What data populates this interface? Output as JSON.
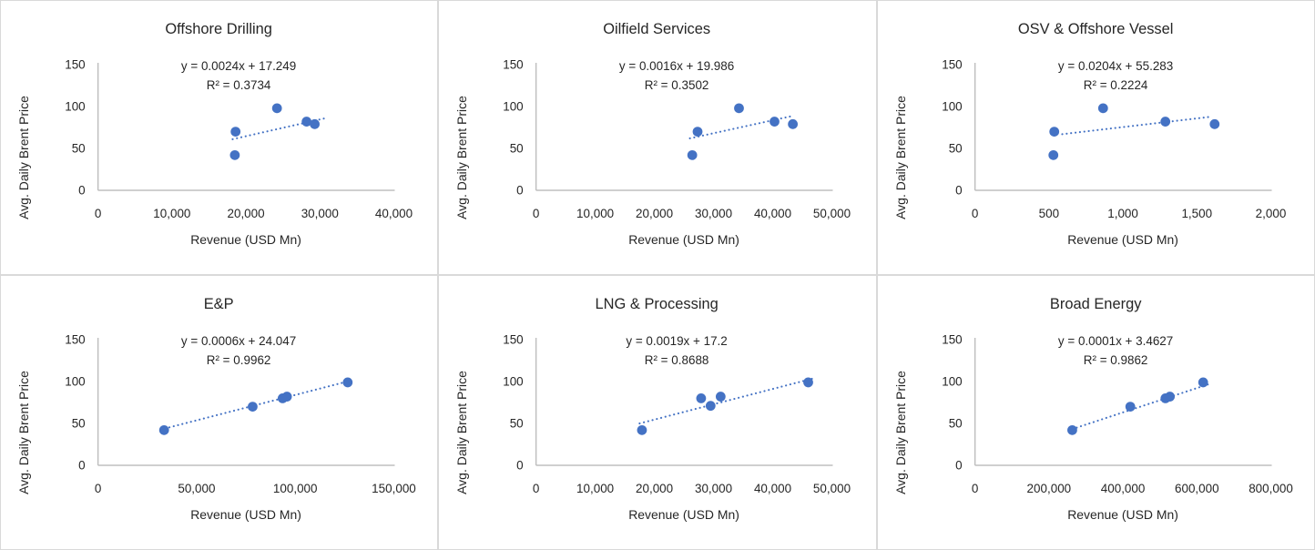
{
  "shared": {
    "xlabel": "Revenue (USD Mn)",
    "ylabel": "Avg. Daily Brent Price",
    "colors": {
      "marker": "#4472C4",
      "trendline": "#4472C4",
      "axis_line": "#BFBFBF",
      "text": "#262626",
      "panel_border": "#D9D9D9",
      "background": "#FFFFFF"
    }
  },
  "chart_data": [
    {
      "type": "scatter",
      "title": "Offshore Drilling",
      "equation": "y = 0.0024x + 17.249",
      "r_squared": "R² = 0.3734",
      "xlabel": "Revenue (USD Mn)",
      "ylabel": "Avg. Daily Brent Price",
      "xlim": [
        0,
        40000
      ],
      "ylim": [
        0,
        150
      ],
      "x_tick_values": [
        0,
        10000,
        20000,
        30000,
        40000
      ],
      "x_tick_labels": [
        "0",
        "10,000",
        "20,000",
        "30,000",
        "40,000"
      ],
      "y_tick_values": [
        0,
        50,
        100,
        150
      ],
      "y_tick_labels": [
        "0",
        "50",
        "100",
        "150"
      ],
      "points": [
        [
          18500,
          42
        ],
        [
          18600,
          70
        ],
        [
          24200,
          98
        ],
        [
          28200,
          82
        ],
        [
          29300,
          79
        ]
      ],
      "trendline": {
        "style": "dotted",
        "x1": 18200,
        "y1": 61,
        "x2": 30700,
        "y2": 86
      },
      "grid": false,
      "legend": false
    },
    {
      "type": "scatter",
      "title": "Oilfield Services",
      "equation": "y = 0.0016x + 19.986",
      "r_squared": "R² = 0.3502",
      "xlabel": "Revenue (USD Mn)",
      "ylabel": "Avg. Daily Brent Price",
      "xlim": [
        0,
        50000
      ],
      "ylim": [
        0,
        150
      ],
      "x_tick_values": [
        0,
        10000,
        20000,
        30000,
        40000,
        50000
      ],
      "x_tick_labels": [
        "0",
        "10,000",
        "20,000",
        "30,000",
        "40,000",
        "50,000"
      ],
      "y_tick_values": [
        0,
        50,
        100,
        150
      ],
      "y_tick_labels": [
        "0",
        "50",
        "100",
        "150"
      ],
      "points": [
        [
          26400,
          42
        ],
        [
          27300,
          70
        ],
        [
          34300,
          98
        ],
        [
          40300,
          82
        ],
        [
          43400,
          79
        ]
      ],
      "trendline": {
        "style": "dotted",
        "x1": 26000,
        "y1": 62,
        "x2": 43500,
        "y2": 89
      },
      "grid": false,
      "legend": false
    },
    {
      "type": "scatter",
      "title": "OSV & Offshore Vessel",
      "equation": "y = 0.0204x + 55.283",
      "r_squared": "R² = 0.2224",
      "xlabel": "Revenue (USD Mn)",
      "ylabel": "Avg. Daily Brent Price",
      "xlim": [
        0,
        2000
      ],
      "ylim": [
        0,
        150
      ],
      "x_tick_values": [
        0,
        500,
        1000,
        1500,
        2000
      ],
      "x_tick_labels": [
        "0",
        "500",
        "1,000",
        "1,500",
        "2,000"
      ],
      "y_tick_values": [
        0,
        50,
        100,
        150
      ],
      "y_tick_labels": [
        "0",
        "50",
        "100",
        "150"
      ],
      "points": [
        [
          530,
          42
        ],
        [
          536,
          70
        ],
        [
          866,
          98
        ],
        [
          1287,
          82
        ],
        [
          1620,
          79
        ]
      ],
      "trendline": {
        "style": "dotted",
        "x1": 590,
        "y1": 67,
        "x2": 1605,
        "y2": 88
      },
      "grid": false,
      "legend": false
    },
    {
      "type": "scatter",
      "title": "E&P",
      "equation": "y = 0.0006x + 24.047",
      "r_squared": "R² = 0.9962",
      "xlabel": "Revenue (USD Mn)",
      "ylabel": "Avg. Daily Brent Price",
      "xlim": [
        0,
        150000
      ],
      "ylim": [
        0,
        150
      ],
      "x_tick_values": [
        0,
        50000,
        100000,
        150000
      ],
      "x_tick_labels": [
        "0",
        "50,000",
        "100,000",
        "150,000"
      ],
      "y_tick_values": [
        0,
        50,
        100,
        150
      ],
      "y_tick_labels": [
        "0",
        "50",
        "100",
        "150"
      ],
      "points": [
        [
          33500,
          42
        ],
        [
          78400,
          70
        ],
        [
          93600,
          80
        ],
        [
          95800,
          82
        ],
        [
          126600,
          99
        ]
      ],
      "trendline": {
        "style": "dotted",
        "x1": 34000,
        "y1": 44,
        "x2": 128000,
        "y2": 101
      },
      "grid": false,
      "legend": false
    },
    {
      "type": "scatter",
      "title": "LNG & Processing",
      "equation": "y = 0.0019x + 17.2",
      "r_squared": "R² = 0.8688",
      "xlabel": "Revenue (USD Mn)",
      "ylabel": "Avg. Daily Brent Price",
      "xlim": [
        0,
        50000
      ],
      "ylim": [
        0,
        150
      ],
      "x_tick_values": [
        0,
        10000,
        20000,
        30000,
        40000,
        50000
      ],
      "x_tick_labels": [
        "0",
        "10,000",
        "20,000",
        "30,000",
        "40,000",
        "50,000"
      ],
      "y_tick_values": [
        0,
        50,
        100,
        150
      ],
      "y_tick_labels": [
        "0",
        "50",
        "100",
        "150"
      ],
      "points": [
        [
          17900,
          42
        ],
        [
          27900,
          80
        ],
        [
          29500,
          71
        ],
        [
          31200,
          82
        ],
        [
          46000,
          99
        ]
      ],
      "trendline": {
        "style": "dotted",
        "x1": 17500,
        "y1": 50,
        "x2": 47000,
        "y2": 104
      },
      "grid": false,
      "legend": false
    },
    {
      "type": "scatter",
      "title": "Broad Energy",
      "equation": "y = 0.0001x + 3.4627",
      "r_squared": "R² = 0.9862",
      "xlabel": "Revenue (USD Mn)",
      "ylabel": "Avg. Daily Brent Price",
      "xlim": [
        0,
        800000
      ],
      "ylim": [
        0,
        150
      ],
      "x_tick_values": [
        0,
        200000,
        400000,
        600000,
        800000
      ],
      "x_tick_labels": [
        "0",
        "200,000",
        "400,000",
        "600,000",
        "800,000"
      ],
      "y_tick_values": [
        0,
        50,
        100,
        150
      ],
      "y_tick_labels": [
        "0",
        "50",
        "100",
        "150"
      ],
      "points": [
        [
          263000,
          42
        ],
        [
          420000,
          70
        ],
        [
          515000,
          80
        ],
        [
          527000,
          82
        ],
        [
          617000,
          99
        ]
      ],
      "trendline": {
        "style": "dotted",
        "x1": 275000,
        "y1": 45,
        "x2": 640000,
        "y2": 98
      },
      "grid": false,
      "legend": false
    }
  ]
}
